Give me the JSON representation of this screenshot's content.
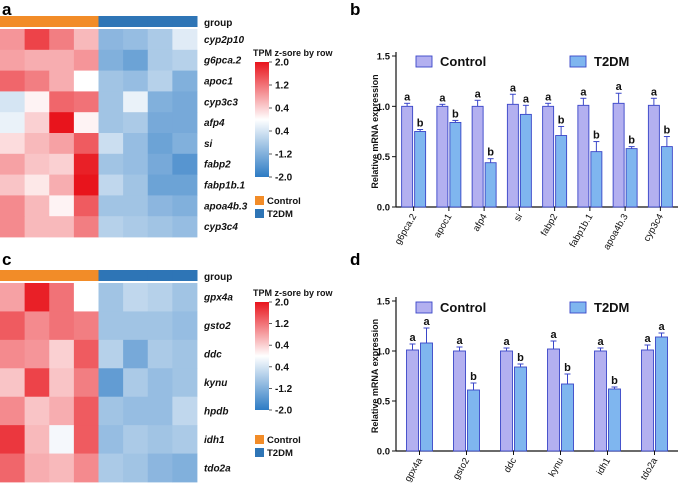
{
  "colors": {
    "control": "#f28c28",
    "t2dm": "#2e75b6",
    "bar_control": "#b3b0f0",
    "bar_t2dm": "#7fb6ef",
    "bar_edge": "#3a46c8",
    "heat_high": "#e8141c",
    "heat_mid": "#ffffff",
    "heat_low": "#2d7bc4"
  },
  "chart_data": [
    {
      "panel": "a",
      "type": "heatmap",
      "group_label": "group",
      "colorbar_title": "TPM z-sore by row",
      "colorbar_ticks": [
        "2.0",
        "1.2",
        "0.4",
        "0.4",
        "-1.2",
        "-2.0"
      ],
      "colorbar_range": [
        -2.0,
        2.0
      ],
      "legend": [
        "Control",
        "T2DM"
      ],
      "column_groups": [
        "Control",
        "Control",
        "Control",
        "Control",
        "T2DM",
        "T2DM",
        "T2DM",
        "T2DM"
      ],
      "rows": [
        "cyp2p10",
        "g6pca.2",
        "apoc1",
        "cyp3c3",
        "afp4",
        "si",
        "fabp2",
        "fabp1b.1",
        "apoa4b.3",
        "cyp3c4"
      ],
      "values": [
        [
          0.9,
          1.6,
          1.1,
          0.6,
          -1.1,
          -1.0,
          -0.8,
          -0.3
        ],
        [
          0.8,
          0.7,
          0.7,
          0.9,
          -1.2,
          -1.4,
          -0.8,
          -0.7
        ],
        [
          1.3,
          1.1,
          0.7,
          0.0,
          -0.9,
          -1.0,
          -0.7,
          -1.2
        ],
        [
          -0.4,
          0.1,
          1.3,
          1.2,
          -0.9,
          -0.2,
          -1.2,
          -1.3
        ],
        [
          -0.2,
          0.4,
          2.0,
          0.1,
          -0.9,
          -0.8,
          -1.3,
          -1.3
        ],
        [
          0.3,
          0.6,
          0.8,
          1.4,
          -0.5,
          -1.0,
          -1.4,
          -1.2
        ],
        [
          0.8,
          0.5,
          0.4,
          1.9,
          -0.9,
          -1.0,
          -1.3,
          -1.6
        ],
        [
          0.5,
          0.2,
          0.7,
          2.0,
          -0.6,
          -0.9,
          -1.4,
          -1.4
        ],
        [
          1.0,
          0.6,
          0.1,
          1.4,
          -0.9,
          -0.9,
          -1.1,
          -1.2
        ],
        [
          1.0,
          0.6,
          0.6,
          1.1,
          -0.7,
          -0.8,
          -0.9,
          -1.0
        ]
      ]
    },
    {
      "panel": "b",
      "type": "bar",
      "ylabel": "Relative mRNA expression",
      "ylim": [
        0,
        1.5
      ],
      "yticks": [
        "0.0",
        "0.5",
        "1.0",
        "1.5"
      ],
      "categories": [
        "g6pca.2",
        "apoc1",
        "afp4",
        "si",
        "fabp2",
        "fabp1b.1",
        "apoa4b.3",
        "cyp3c4"
      ],
      "series": [
        {
          "name": "Control",
          "values": [
            1.0,
            1.0,
            1.0,
            1.02,
            1.0,
            1.01,
            1.03,
            1.01
          ],
          "errors": [
            0.03,
            0.02,
            0.06,
            0.1,
            0.03,
            0.07,
            0.1,
            0.07
          ],
          "labels": [
            "a",
            "a",
            "a",
            "a",
            "a",
            "a",
            "a",
            "a"
          ]
        },
        {
          "name": "T2DM",
          "values": [
            0.75,
            0.84,
            0.44,
            0.92,
            0.71,
            0.55,
            0.58,
            0.6
          ],
          "errors": [
            0.02,
            0.02,
            0.04,
            0.09,
            0.09,
            0.1,
            0.02,
            0.1
          ],
          "labels": [
            "b",
            "b",
            "b",
            "a",
            "b",
            "b",
            "b",
            "b"
          ]
        }
      ]
    },
    {
      "panel": "c",
      "type": "heatmap",
      "group_label": "group",
      "colorbar_title": "TPM z-sore by row",
      "colorbar_ticks": [
        "2.0",
        "1.2",
        "0.4",
        "0.4",
        "-1.2",
        "-2.0"
      ],
      "colorbar_range": [
        -2.0,
        2.0
      ],
      "legend": [
        "Control",
        "T2DM"
      ],
      "column_groups": [
        "Control",
        "Control",
        "Control",
        "Control",
        "T2DM",
        "T2DM",
        "T2DM",
        "T2DM"
      ],
      "rows": [
        "gpx4a",
        "gsto2",
        "ddc",
        "kynu",
        "hpdb",
        "idh1",
        "tdo2a"
      ],
      "values": [
        [
          0.8,
          1.9,
          1.2,
          0.0,
          -0.9,
          -0.6,
          -0.7,
          -0.9
        ],
        [
          1.4,
          1.0,
          1.2,
          1.1,
          -0.9,
          -0.9,
          -0.9,
          -1.0
        ],
        [
          1.0,
          0.9,
          0.4,
          1.4,
          -0.7,
          -1.3,
          -0.8,
          -0.9
        ],
        [
          0.5,
          1.6,
          0.5,
          1.1,
          -1.5,
          -0.8,
          -1.0,
          -0.9
        ],
        [
          1.0,
          0.5,
          0.7,
          1.4,
          -0.9,
          -1.0,
          -1.0,
          -0.6
        ],
        [
          1.7,
          0.6,
          -0.1,
          1.4,
          -1.0,
          -0.8,
          -0.9,
          -0.8
        ],
        [
          1.3,
          0.7,
          0.6,
          1.0,
          -0.8,
          -0.9,
          -1.1,
          -1.2
        ]
      ]
    },
    {
      "panel": "d",
      "type": "bar",
      "ylabel": "Relative mRNA expression",
      "ylim": [
        0,
        1.5
      ],
      "yticks": [
        "0.0",
        "0.5",
        "1.0",
        "1.5"
      ],
      "categories": [
        "gpx4a",
        "gsto2",
        "ddc",
        "kynu",
        "idh1",
        "tdo2a"
      ],
      "series": [
        {
          "name": "Control",
          "values": [
            1.01,
            1.0,
            1.0,
            1.02,
            1.0,
            1.01
          ],
          "errors": [
            0.06,
            0.04,
            0.03,
            0.08,
            0.03,
            0.05
          ],
          "labels": [
            "a",
            "a",
            "a",
            "a",
            "a",
            "a"
          ]
        },
        {
          "name": "T2DM",
          "values": [
            1.08,
            0.61,
            0.84,
            0.67,
            0.62,
            1.14
          ],
          "errors": [
            0.15,
            0.07,
            0.03,
            0.1,
            0.02,
            0.04
          ],
          "labels": [
            "a",
            "b",
            "b",
            "b",
            "b",
            "a"
          ]
        }
      ]
    }
  ]
}
